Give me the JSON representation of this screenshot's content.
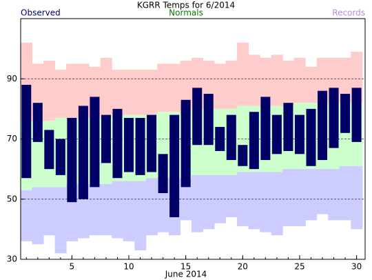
{
  "chart_data": {
    "type": "temperature_range",
    "title": "KGRR Temps for 6/2014",
    "xlabel": "June 2014",
    "x": [
      1,
      2,
      3,
      4,
      5,
      6,
      7,
      8,
      9,
      10,
      11,
      12,
      13,
      14,
      15,
      16,
      17,
      18,
      19,
      20,
      21,
      22,
      23,
      24,
      25,
      26,
      27,
      28,
      29,
      30
    ],
    "xlim": [
      0.5,
      30.75
    ],
    "xticks": [
      5,
      10,
      15,
      20,
      25,
      30
    ],
    "ylim": [
      30,
      110
    ],
    "yticks": [
      30,
      50,
      70,
      90
    ],
    "grid": true,
    "series": [
      {
        "name": "Observed",
        "color": "#000066",
        "label_color": "#000066",
        "high": [
          88,
          82,
          73,
          70,
          77,
          81,
          84,
          78,
          80,
          77,
          77,
          78,
          65,
          78,
          83,
          87,
          85,
          74,
          78,
          68,
          79,
          84,
          78,
          82,
          78,
          80,
          86,
          87,
          85,
          87
        ],
        "low": [
          57,
          69,
          60,
          58,
          49,
          50,
          54,
          62,
          57,
          59,
          58,
          59,
          52,
          44,
          54,
          68,
          68,
          66,
          63,
          61,
          60,
          63,
          65,
          66,
          65,
          61,
          63,
          67,
          72,
          69
        ]
      },
      {
        "name": "Normals",
        "color": "#ccffcc",
        "label_color": "#008000",
        "high": [
          76,
          76,
          76,
          77,
          77,
          77,
          77,
          77,
          78,
          78,
          78,
          78,
          79,
          79,
          79,
          80,
          80,
          80,
          80,
          81,
          81,
          81,
          81,
          81,
          82,
          82,
          82,
          82,
          82,
          82
        ],
        "low": [
          53,
          54,
          54,
          54,
          55,
          55,
          55,
          55,
          56,
          56,
          56,
          57,
          57,
          57,
          57,
          58,
          58,
          58,
          58,
          59,
          59,
          59,
          59,
          60,
          60,
          60,
          60,
          60,
          61,
          61
        ]
      },
      {
        "name": "Records",
        "color": "#ffcccc",
        "low_color": "#ccccff",
        "label_color": "#bb88dd",
        "high": [
          102,
          95,
          96,
          93,
          95,
          95,
          94,
          97,
          93,
          93,
          93,
          93,
          95,
          95,
          96,
          97,
          96,
          95,
          96,
          102,
          98,
          97,
          98,
          96,
          97,
          94,
          97,
          97,
          97,
          99
        ],
        "low": [
          36,
          35,
          38,
          32,
          36,
          37,
          38,
          38,
          37,
          36,
          33,
          38,
          39,
          38,
          43,
          39,
          40,
          42,
          44,
          41,
          40,
          39,
          38,
          41,
          41,
          43,
          45,
          43,
          43,
          40
        ]
      }
    ]
  }
}
